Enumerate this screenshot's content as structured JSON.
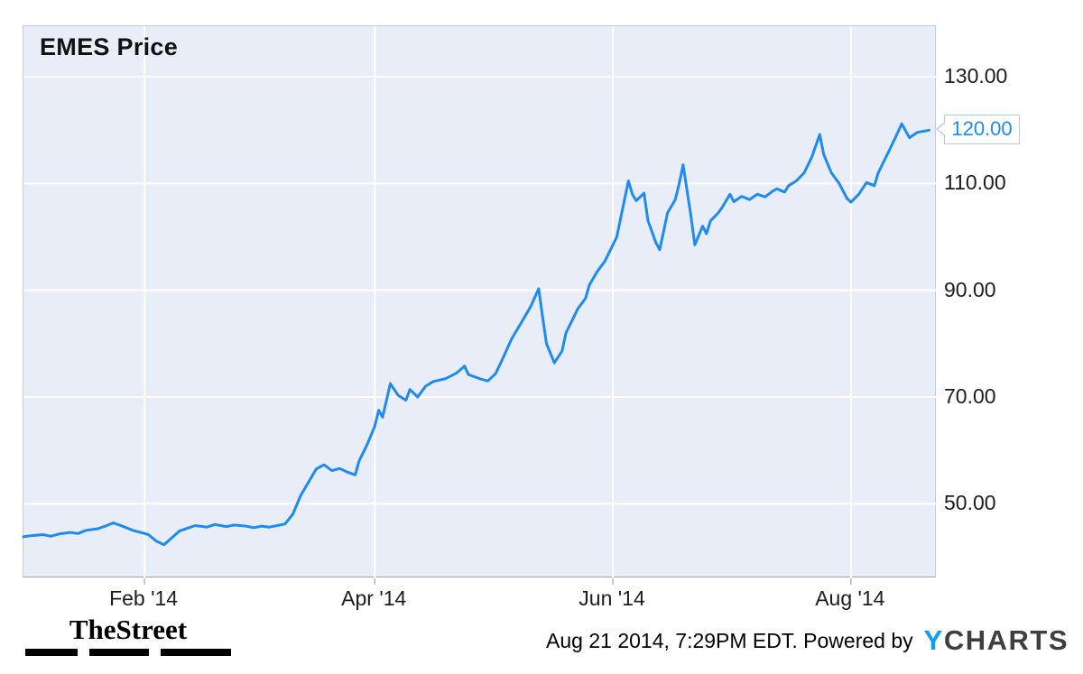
{
  "chart_data": {
    "type": "line",
    "title": "EMES Price",
    "series_name": "EMES Price",
    "x_unit": "days since Jan 1 2014",
    "x": [
      0,
      2,
      5,
      7,
      9,
      12,
      14,
      16,
      19,
      21,
      23,
      26,
      28,
      30,
      32,
      34,
      36,
      38,
      40,
      42,
      44,
      47,
      49,
      52,
      54,
      57,
      59,
      61,
      63,
      65,
      67,
      69,
      71,
      73,
      75,
      77,
      79,
      81,
      83,
      85,
      86,
      88,
      90,
      91,
      92,
      94,
      96,
      98,
      99,
      101,
      103,
      105,
      108,
      111,
      113,
      114,
      117,
      119,
      121,
      123,
      125,
      128,
      130,
      132,
      133,
      134,
      136,
      138,
      139,
      141,
      142,
      144,
      145,
      147,
      149,
      150,
      152,
      155,
      156,
      157,
      159,
      160,
      162,
      163,
      164,
      165,
      167,
      168,
      169,
      171,
      172,
      174,
      175,
      176,
      178,
      179,
      181,
      182,
      184,
      186,
      188,
      190,
      192,
      193,
      195,
      196,
      198,
      200,
      202,
      204,
      205,
      207,
      209,
      211,
      212,
      214,
      216,
      218,
      219,
      221,
      223,
      225,
      227,
      229,
      232
    ],
    "values": [
      43.8,
      44.0,
      44.2,
      43.9,
      44.3,
      44.6,
      44.4,
      45.0,
      45.3,
      45.8,
      46.4,
      45.6,
      45.0,
      44.6,
      44.2,
      43.0,
      42.3,
      43.6,
      44.9,
      45.4,
      45.9,
      45.6,
      46.1,
      45.7,
      46.0,
      45.8,
      45.5,
      45.8,
      45.6,
      45.9,
      46.2,
      48.0,
      51.5,
      54.0,
      56.5,
      57.3,
      56.2,
      56.6,
      55.9,
      55.4,
      58.0,
      61.0,
      64.5,
      67.5,
      66.2,
      72.5,
      70.3,
      69.4,
      71.4,
      70.0,
      72.0,
      72.9,
      73.4,
      74.5,
      75.8,
      74.2,
      73.4,
      73.0,
      74.4,
      77.5,
      80.8,
      84.5,
      87.0,
      90.3,
      85.0,
      80.0,
      76.4,
      78.6,
      82.0,
      85.0,
      86.5,
      88.5,
      91.0,
      93.5,
      95.5,
      97.0,
      100.0,
      110.5,
      108.0,
      106.8,
      108.2,
      103.0,
      99.0,
      97.6,
      101.0,
      104.5,
      107.0,
      110.0,
      113.5,
      104.0,
      98.5,
      102.0,
      100.6,
      103.0,
      104.5,
      105.5,
      108.0,
      106.6,
      107.6,
      107.0,
      108.0,
      107.5,
      108.6,
      109.0,
      108.4,
      109.6,
      110.5,
      112.0,
      115.0,
      119.2,
      115.5,
      112.0,
      110.0,
      107.2,
      106.5,
      108.0,
      110.2,
      109.6,
      112.0,
      115.0,
      118.0,
      121.2,
      118.6,
      119.6,
      120.0
    ],
    "xlim": [
      0,
      234
    ],
    "ylim": [
      36,
      139.5
    ],
    "yticks": [
      {
        "value": 50,
        "label": "50.00"
      },
      {
        "value": 70,
        "label": "70.00"
      },
      {
        "value": 90,
        "label": "90.00"
      },
      {
        "value": 110,
        "label": "110.00"
      },
      {
        "value": 130,
        "label": "130.00"
      }
    ],
    "xticks": [
      {
        "value": 31,
        "label": "Feb '14"
      },
      {
        "value": 90,
        "label": "Apr '14"
      },
      {
        "value": 151,
        "label": "Jun '14"
      },
      {
        "value": 212,
        "label": "Aug '14"
      }
    ],
    "grid": true,
    "legend": "none",
    "line_color": "#1e8bf0",
    "plot_bg": "#e9edf8",
    "grid_color": "#ffffff",
    "current_price": {
      "value": 120,
      "label": "120.00"
    }
  },
  "footer": {
    "brand": "TheStreet",
    "timestamp": "Aug 21 2014, 7:29PM EDT.",
    "powered_by": "Powered by",
    "ycharts": {
      "y": "Y",
      "charts": "CHARTS",
      "y_color": "#0f9cf3",
      "charts_color": "#3f3f41"
    }
  }
}
